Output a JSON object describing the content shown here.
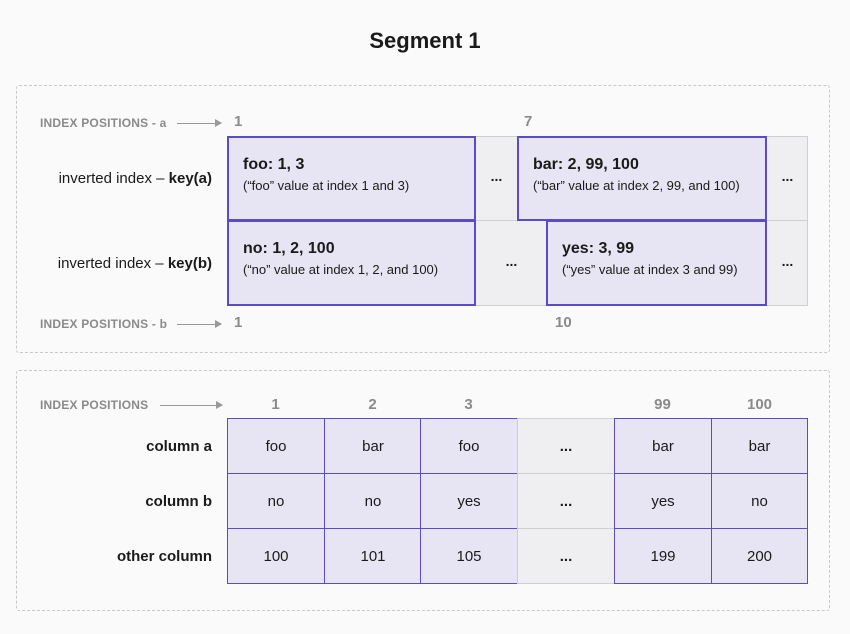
{
  "title": "Segment 1",
  "top": {
    "index_a_label": "INDEX POSITIONS - a",
    "index_b_label": "INDEX POSITIONS - b",
    "index_a_positions": [
      "1",
      "7"
    ],
    "index_b_positions": [
      "1",
      "10"
    ],
    "rows": [
      {
        "label_prefix": "inverted index – ",
        "label_key": "key(a)"
      },
      {
        "label_prefix": "inverted index – ",
        "label_key": "key(b)"
      }
    ],
    "entries": [
      {
        "head": "foo: 1, 3",
        "sub": "(“foo” value at index 1 and 3)"
      },
      {
        "head": "bar: 2, 99, 100",
        "sub": "(“bar” value at index 2, 99, and 100)"
      },
      {
        "head": "no: 1, 2, 100",
        "sub": "(“no” value at index 1, 2, and 100)"
      },
      {
        "head": "yes: 3, 99",
        "sub": "(“yes” value at index 3 and 99)"
      }
    ],
    "ellipsis": "..."
  },
  "bottom": {
    "index_label": "INDEX POSITIONS",
    "positions": [
      "1",
      "2",
      "3",
      "",
      "99",
      "100"
    ],
    "rows": [
      {
        "label": "column a",
        "cells": [
          "foo",
          "bar",
          "foo",
          "...",
          "bar",
          "bar"
        ]
      },
      {
        "label": "column b",
        "cells": [
          "no",
          "no",
          "yes",
          "...",
          "yes",
          "no"
        ]
      },
      {
        "label": "other column",
        "cells": [
          "100",
          "101",
          "105",
          "...",
          "199",
          "200"
        ]
      }
    ]
  },
  "colors": {
    "accent": "#5a4cc8",
    "fill": "#e7e5f3",
    "gray": "#efeff1"
  }
}
